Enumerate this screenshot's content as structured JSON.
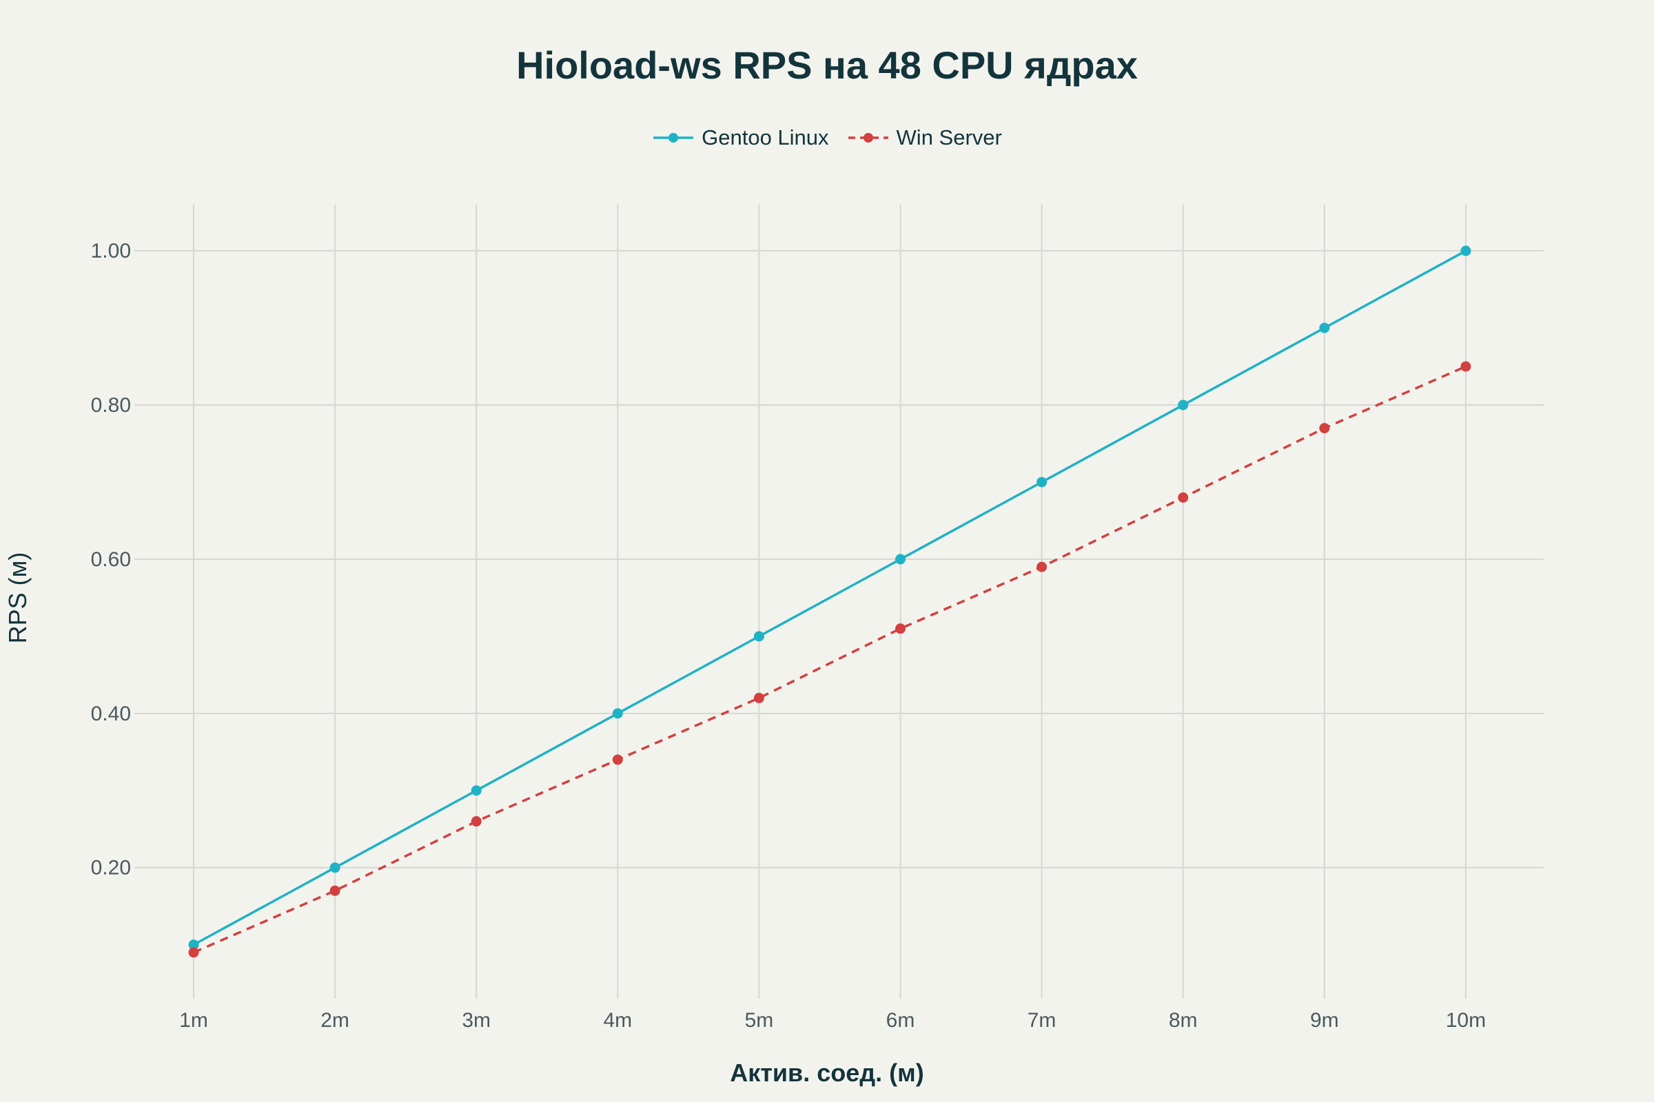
{
  "chart_data": {
    "type": "line",
    "title": "Hioload-ws RPS на 48 CPU ядрах",
    "xlabel": "Актив. соед. (м)",
    "ylabel": "RPS (м)",
    "categories": [
      "1m",
      "2m",
      "3m",
      "4m",
      "5m",
      "6m",
      "7m",
      "8m",
      "9m",
      "10m"
    ],
    "series": [
      {
        "name": "Gentoo Linux",
        "color": "#1fb2c6",
        "dash": "solid",
        "values": [
          0.1,
          0.2,
          0.3,
          0.4,
          0.5,
          0.6,
          0.7,
          0.8,
          0.9,
          1.0
        ]
      },
      {
        "name": "Win Server",
        "color": "#d3403f",
        "dash": "dashed",
        "values": [
          0.09,
          0.17,
          0.26,
          0.34,
          0.42,
          0.51,
          0.59,
          0.68,
          0.77,
          0.85
        ]
      }
    ],
    "ylim": [
      0.03,
      1.06
    ],
    "yticks": [
      0.2,
      0.4,
      0.6,
      0.8,
      1.0
    ],
    "ytick_labels": [
      "0.20",
      "0.40",
      "0.60",
      "0.80",
      "1.00"
    ],
    "grid": true,
    "legend_position": "top-center",
    "gridline_color": "#d6d6d2",
    "background_color": "#f3f3ee"
  }
}
